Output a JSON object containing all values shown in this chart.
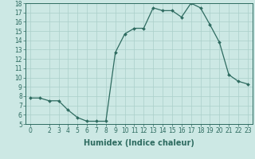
{
  "x": [
    0,
    1,
    2,
    3,
    4,
    5,
    6,
    7,
    8,
    9,
    10,
    11,
    12,
    13,
    14,
    15,
    16,
    17,
    18,
    19,
    20,
    21,
    22,
    23
  ],
  "y": [
    7.8,
    7.8,
    7.5,
    7.5,
    6.5,
    5.7,
    5.3,
    5.3,
    5.3,
    12.7,
    14.7,
    15.3,
    15.3,
    17.5,
    17.2,
    17.2,
    16.5,
    18.0,
    17.5,
    15.7,
    13.8,
    10.3,
    9.6,
    9.3
  ],
  "line_color": "#2e6b60",
  "marker": "D",
  "marker_size": 2.0,
  "bg_color": "#cce8e4",
  "grid_color": "#aacfca",
  "xlabel": "Humidex (Indice chaleur)",
  "ylim": [
    5,
    18
  ],
  "xlim": [
    -0.5,
    23.5
  ],
  "yticks": [
    5,
    6,
    7,
    8,
    9,
    10,
    11,
    12,
    13,
    14,
    15,
    16,
    17,
    18
  ],
  "xticks": [
    0,
    2,
    3,
    4,
    5,
    6,
    7,
    8,
    9,
    10,
    11,
    12,
    13,
    14,
    15,
    16,
    17,
    18,
    19,
    20,
    21,
    22,
    23
  ],
  "tick_fontsize": 5.5,
  "xlabel_fontsize": 7.0
}
